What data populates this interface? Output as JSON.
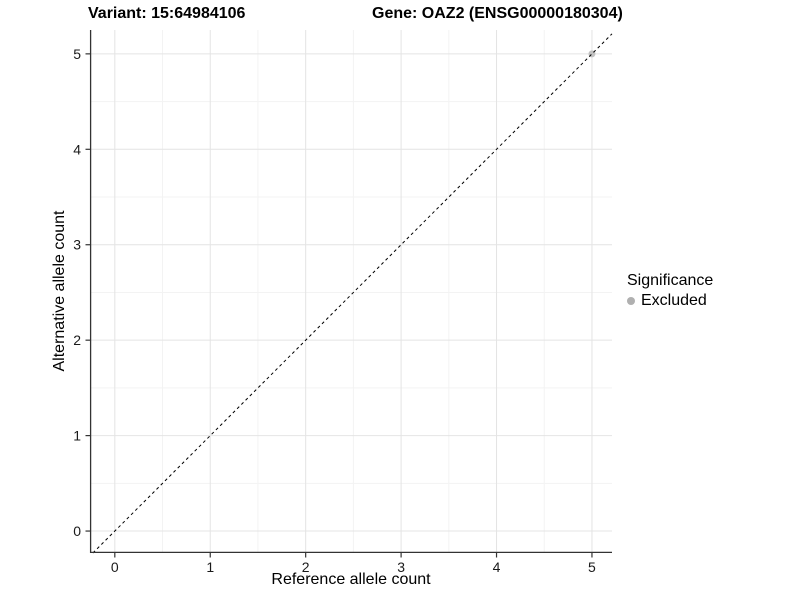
{
  "chart_data": {
    "type": "scatter",
    "title_left": "Variant: 15:64984106",
    "title_right": "Gene: OAZ2 (ENSG00000180304)",
    "xlabel": "Reference allele count",
    "ylabel": "Alternative allele count",
    "xlim": [
      -0.26,
      5.21
    ],
    "ylim": [
      -0.23,
      5.25
    ],
    "xticks": [
      0,
      1,
      2,
      3,
      4,
      5
    ],
    "yticks": [
      0,
      1,
      2,
      3,
      4,
      5
    ],
    "minor_xticks": [
      0.5,
      1.5,
      2.5,
      3.5,
      4.5
    ],
    "minor_yticks": [
      0.5,
      1.5,
      2.5,
      3.5,
      4.5
    ],
    "grid": true,
    "abline": {
      "slope": 1,
      "intercept": 0,
      "linestyle": "dashed",
      "color": "#000000"
    },
    "series": [
      {
        "name": "Excluded",
        "color": "#c2c2c2",
        "points": [
          {
            "x": 5,
            "y": 5
          }
        ]
      }
    ],
    "legend": {
      "position": "right",
      "title": "Significance",
      "items": [
        {
          "label": "Excluded",
          "color": "#b0b0b0"
        }
      ]
    }
  },
  "colors": {
    "background": "#ffffff",
    "grid_major": "#e4e4e4",
    "grid_minor": "#f3f3f3",
    "axis_line": "#333333",
    "tick_mark": "#333333",
    "tick_label": "#1a1a1a",
    "text": "#000000"
  }
}
